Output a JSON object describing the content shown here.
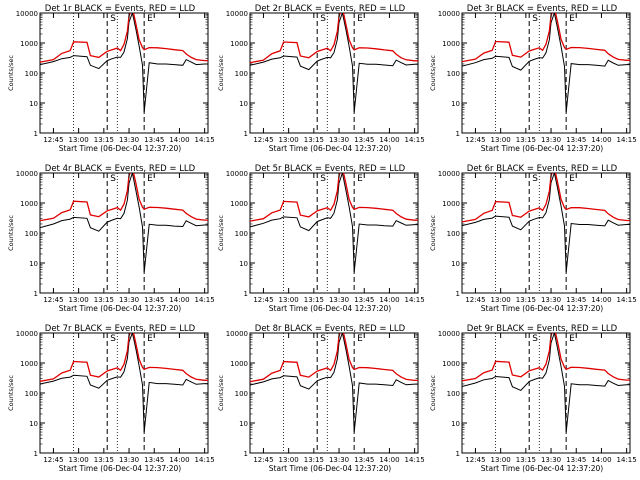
{
  "colors": {
    "events": "#000000",
    "lld": "#e00000",
    "axis": "#000000",
    "background": "#ffffff"
  },
  "common": {
    "xlabel": "Start Time (06-Dec-04 12:37:20)",
    "ylabel": "Counts/sec",
    "x_tick_labels": [
      "12:45",
      "13:00",
      "13:15",
      "13:30",
      "13:45",
      "14:00",
      "14:15"
    ],
    "y_tick_labels": [
      "1",
      "10",
      "100",
      "1000",
      "10000"
    ],
    "markers": [
      "S",
      "E"
    ]
  },
  "chart_data": [
    {
      "type": "line",
      "title": "Det 1r BLACK = Events, RED = LLD",
      "yscale": "log",
      "ylim": [
        1,
        10000
      ],
      "xlim": [
        "12:37",
        "14:17"
      ],
      "x": [
        "12:37",
        "12:45",
        "12:50",
        "12:55",
        "12:57",
        "13:05",
        "13:07",
        "13:12",
        "13:17",
        "13:20",
        "13:23",
        "13:25",
        "13:27",
        "13:29",
        "13:30",
        "13:32",
        "13:34",
        "13:36",
        "13:38",
        "13:39",
        "13:42",
        "13:47",
        "13:52",
        "13:57",
        "14:02",
        "14:04",
        "14:07",
        "14:10",
        "14:15",
        "14:17"
      ],
      "series": [
        {
          "name": "Events",
          "values": [
            190,
            240,
            300,
            330,
            380,
            350,
            180,
            140,
            260,
            300,
            340,
            330,
            500,
            1400,
            5000,
            10000,
            3000,
            800,
            180,
            5,
            220,
            200,
            200,
            190,
            180,
            280,
            230,
            190,
            200,
            200
          ]
        },
        {
          "name": "LLD",
          "values": [
            230,
            280,
            450,
            560,
            1100,
            1050,
            380,
            330,
            530,
            600,
            680,
            560,
            900,
            2500,
            8000,
            15000,
            4500,
            1300,
            700,
            600,
            700,
            690,
            650,
            600,
            560,
            430,
            330,
            280,
            260,
            260
          ]
        }
      ],
      "vlines_dotted": [
        "12:57",
        "13:23"
      ],
      "vlines_dashed": [
        "13:17",
        "13:39"
      ]
    },
    {
      "type": "line",
      "title": "Det 2r BLACK = Events, RED = LLD",
      "yscale": "log",
      "ylim": [
        1,
        10000
      ],
      "xlim": [
        "12:37",
        "14:17"
      ],
      "x": [
        "12:37",
        "12:45",
        "12:50",
        "12:55",
        "12:57",
        "13:05",
        "13:07",
        "13:12",
        "13:17",
        "13:20",
        "13:23",
        "13:25",
        "13:27",
        "13:29",
        "13:30",
        "13:32",
        "13:34",
        "13:36",
        "13:38",
        "13:39",
        "13:42",
        "13:47",
        "13:52",
        "13:57",
        "14:02",
        "14:04",
        "14:07",
        "14:10",
        "14:15",
        "14:17"
      ],
      "series": [
        {
          "name": "Events",
          "values": [
            180,
            230,
            290,
            320,
            370,
            340,
            170,
            130,
            250,
            290,
            330,
            320,
            480,
            1350,
            4800,
            10000,
            2900,
            780,
            170,
            5,
            210,
            195,
            195,
            185,
            175,
            270,
            220,
            185,
            195,
            195
          ]
        },
        {
          "name": "LLD",
          "values": [
            220,
            270,
            440,
            550,
            1080,
            1030,
            370,
            320,
            520,
            590,
            670,
            550,
            880,
            2450,
            7800,
            15000,
            4400,
            1280,
            690,
            590,
            690,
            680,
            640,
            590,
            550,
            420,
            320,
            275,
            255,
            255
          ]
        }
      ],
      "vlines_dotted": [
        "12:57",
        "13:23"
      ],
      "vlines_dashed": [
        "13:17",
        "13:39"
      ]
    },
    {
      "type": "line",
      "title": "Det 3r BLACK = Events, RED = LLD",
      "yscale": "log",
      "ylim": [
        1,
        10000
      ],
      "xlim": [
        "12:37",
        "14:17"
      ],
      "x": [
        "12:37",
        "12:45",
        "12:50",
        "12:55",
        "12:57",
        "13:05",
        "13:07",
        "13:12",
        "13:17",
        "13:20",
        "13:23",
        "13:25",
        "13:27",
        "13:29",
        "13:30",
        "13:32",
        "13:34",
        "13:36",
        "13:38",
        "13:39",
        "13:42",
        "13:47",
        "13:52",
        "13:57",
        "14:02",
        "14:04",
        "14:07",
        "14:10",
        "14:15",
        "14:17"
      ],
      "series": [
        {
          "name": "Events",
          "values": [
            170,
            220,
            280,
            310,
            360,
            330,
            165,
            125,
            245,
            285,
            325,
            315,
            470,
            1300,
            4700,
            10000,
            2800,
            760,
            165,
            5,
            205,
            190,
            190,
            180,
            170,
            265,
            215,
            180,
            190,
            190
          ]
        },
        {
          "name": "LLD",
          "values": [
            240,
            290,
            460,
            570,
            1120,
            1060,
            390,
            340,
            540,
            610,
            690,
            570,
            910,
            2550,
            8100,
            15000,
            4600,
            1320,
            710,
            610,
            710,
            700,
            660,
            610,
            570,
            440,
            340,
            285,
            265,
            265
          ]
        }
      ],
      "vlines_dotted": [
        "12:57",
        "13:23"
      ],
      "vlines_dashed": [
        "13:17",
        "13:39"
      ]
    },
    {
      "type": "line",
      "title": "Det 4r BLACK = Events, RED = LLD",
      "yscale": "log",
      "ylim": [
        1,
        10000
      ],
      "xlim": [
        "12:37",
        "14:17"
      ],
      "x": [
        "12:37",
        "12:45",
        "12:50",
        "12:55",
        "12:57",
        "13:05",
        "13:07",
        "13:12",
        "13:17",
        "13:20",
        "13:23",
        "13:25",
        "13:27",
        "13:29",
        "13:30",
        "13:32",
        "13:34",
        "13:36",
        "13:38",
        "13:39",
        "13:42",
        "13:47",
        "13:52",
        "13:57",
        "14:02",
        "14:04",
        "14:07",
        "14:10",
        "14:15",
        "14:17"
      ],
      "series": [
        {
          "name": "Events",
          "values": [
            150,
            200,
            260,
            290,
            330,
            310,
            150,
            115,
            230,
            270,
            310,
            300,
            450,
            1250,
            4500,
            10000,
            2700,
            740,
            160,
            5,
            195,
            180,
            180,
            170,
            165,
            255,
            210,
            175,
            185,
            185
          ]
        },
        {
          "name": "LLD",
          "values": [
            260,
            310,
            480,
            590,
            1150,
            1080,
            400,
            350,
            550,
            620,
            700,
            580,
            920,
            2600,
            8200,
            15000,
            4700,
            1350,
            720,
            620,
            720,
            710,
            670,
            620,
            580,
            450,
            350,
            290,
            270,
            270
          ]
        }
      ],
      "vlines_dotted": [
        "12:57",
        "13:23"
      ],
      "vlines_dashed": [
        "13:17",
        "13:39"
      ]
    },
    {
      "type": "line",
      "title": "Det 5r BLACK = Events, RED = LLD",
      "yscale": "log",
      "ylim": [
        1,
        10000
      ],
      "xlim": [
        "12:37",
        "14:17"
      ],
      "x": [
        "12:37",
        "12:45",
        "12:50",
        "12:55",
        "12:57",
        "13:05",
        "13:07",
        "13:12",
        "13:17",
        "13:20",
        "13:23",
        "13:25",
        "13:27",
        "13:29",
        "13:30",
        "13:32",
        "13:34",
        "13:36",
        "13:38",
        "13:39",
        "13:42",
        "13:47",
        "13:52",
        "13:57",
        "14:02",
        "14:04",
        "14:07",
        "14:10",
        "14:15",
        "14:17"
      ],
      "series": [
        {
          "name": "Events",
          "values": [
            160,
            210,
            270,
            300,
            345,
            320,
            160,
            120,
            240,
            280,
            320,
            310,
            460,
            1280,
            4600,
            10000,
            2750,
            750,
            165,
            5,
            200,
            185,
            185,
            175,
            170,
            260,
            215,
            180,
            190,
            190
          ]
        },
        {
          "name": "LLD",
          "values": [
            250,
            300,
            470,
            580,
            1130,
            1070,
            395,
            345,
            545,
            615,
            695,
            575,
            915,
            2580,
            8150,
            15000,
            4650,
            1330,
            715,
            615,
            715,
            705,
            665,
            615,
            575,
            445,
            345,
            288,
            268,
            268
          ]
        }
      ],
      "vlines_dotted": [
        "12:57",
        "13:23"
      ],
      "vlines_dashed": [
        "13:17",
        "13:39"
      ]
    },
    {
      "type": "line",
      "title": "Det 6r BLACK = Events, RED = LLD",
      "yscale": "log",
      "ylim": [
        1,
        10000
      ],
      "xlim": [
        "12:37",
        "14:17"
      ],
      "x": [
        "12:37",
        "12:45",
        "12:50",
        "12:55",
        "12:57",
        "13:05",
        "13:07",
        "13:12",
        "13:17",
        "13:20",
        "13:23",
        "13:25",
        "13:27",
        "13:29",
        "13:30",
        "13:32",
        "13:34",
        "13:36",
        "13:38",
        "13:39",
        "13:42",
        "13:47",
        "13:52",
        "13:57",
        "14:02",
        "14:04",
        "14:07",
        "14:10",
        "14:15",
        "14:17"
      ],
      "series": [
        {
          "name": "Events",
          "values": [
            175,
            225,
            285,
            315,
            365,
            335,
            170,
            128,
            248,
            288,
            328,
            318,
            475,
            1320,
            4750,
            10000,
            2850,
            770,
            168,
            5,
            208,
            192,
            192,
            182,
            172,
            268,
            218,
            182,
            192,
            192
          ]
        },
        {
          "name": "LLD",
          "values": [
            235,
            285,
            455,
            565,
            1110,
            1050,
            385,
            335,
            535,
            605,
            685,
            565,
            905,
            2520,
            8050,
            15000,
            4550,
            1310,
            705,
            605,
            705,
            695,
            655,
            605,
            565,
            435,
            335,
            282,
            262,
            262
          ]
        }
      ],
      "vlines_dotted": [
        "12:57",
        "13:23"
      ],
      "vlines_dashed": [
        "13:17",
        "13:39"
      ]
    },
    {
      "type": "line",
      "title": "Det 7r BLACK = Events, RED = LLD",
      "yscale": "log",
      "ylim": [
        1,
        10000
      ],
      "xlim": [
        "12:37",
        "14:17"
      ],
      "x": [
        "12:37",
        "12:45",
        "12:50",
        "12:55",
        "12:57",
        "13:05",
        "13:07",
        "13:12",
        "13:17",
        "13:20",
        "13:23",
        "13:25",
        "13:27",
        "13:29",
        "13:30",
        "13:32",
        "13:34",
        "13:36",
        "13:38",
        "13:39",
        "13:42",
        "13:47",
        "13:52",
        "13:57",
        "14:02",
        "14:04",
        "14:07",
        "14:10",
        "14:15",
        "14:17"
      ],
      "series": [
        {
          "name": "Events",
          "values": [
            200,
            250,
            310,
            340,
            390,
            360,
            185,
            145,
            265,
            305,
            345,
            335,
            510,
            1420,
            5100,
            10000,
            3050,
            810,
            185,
            5,
            225,
            205,
            205,
            195,
            185,
            285,
            235,
            195,
            205,
            205
          ]
        },
        {
          "name": "LLD",
          "values": [
            245,
            295,
            465,
            575,
            1125,
            1065,
            392,
            342,
            542,
            612,
            692,
            572,
            912,
            2560,
            8120,
            15000,
            4620,
            1325,
            712,
            612,
            712,
            702,
            662,
            612,
            572,
            442,
            342,
            286,
            266,
            266
          ]
        }
      ],
      "vlines_dotted": [
        "12:57",
        "13:23"
      ],
      "vlines_dashed": [
        "13:17",
        "13:39"
      ]
    },
    {
      "type": "line",
      "title": "Det 8r BLACK = Events, RED = LLD",
      "yscale": "log",
      "ylim": [
        1,
        10000
      ],
      "xlim": [
        "12:37",
        "14:17"
      ],
      "x": [
        "12:37",
        "12:45",
        "12:50",
        "12:55",
        "12:57",
        "13:05",
        "13:07",
        "13:12",
        "13:17",
        "13:20",
        "13:23",
        "13:25",
        "13:27",
        "13:29",
        "13:30",
        "13:32",
        "13:34",
        "13:36",
        "13:38",
        "13:39",
        "13:42",
        "13:47",
        "13:52",
        "13:57",
        "14:02",
        "14:04",
        "14:07",
        "14:10",
        "14:15",
        "14:17"
      ],
      "series": [
        {
          "name": "Events",
          "values": [
            185,
            235,
            295,
            325,
            375,
            345,
            175,
            135,
            255,
            295,
            335,
            325,
            490,
            1380,
            4900,
            10000,
            2950,
            790,
            175,
            5,
            215,
            198,
            198,
            188,
            178,
            275,
            225,
            188,
            198,
            198
          ]
        },
        {
          "name": "LLD",
          "values": [
            238,
            288,
            458,
            568,
            1115,
            1055,
            388,
            338,
            538,
            608,
            688,
            568,
            908,
            2540,
            8080,
            15000,
            4580,
            1315,
            708,
            608,
            708,
            698,
            658,
            608,
            568,
            438,
            338,
            284,
            264,
            264
          ]
        }
      ],
      "vlines_dotted": [
        "12:57",
        "13:23"
      ],
      "vlines_dashed": [
        "13:17",
        "13:39"
      ]
    },
    {
      "type": "line",
      "title": "Det 9r BLACK = Events, RED = LLD",
      "yscale": "log",
      "ylim": [
        1,
        10000
      ],
      "xlim": [
        "12:37",
        "14:17"
      ],
      "x": [
        "12:37",
        "12:45",
        "12:50",
        "12:55",
        "12:57",
        "13:05",
        "13:07",
        "13:12",
        "13:17",
        "13:20",
        "13:23",
        "13:25",
        "13:27",
        "13:29",
        "13:30",
        "13:32",
        "13:34",
        "13:36",
        "13:38",
        "13:39",
        "13:42",
        "13:47",
        "13:52",
        "13:57",
        "14:02",
        "14:04",
        "14:07",
        "14:10",
        "14:15",
        "14:17"
      ],
      "series": [
        {
          "name": "Events",
          "values": [
            165,
            215,
            275,
            305,
            355,
            325,
            162,
            122,
            242,
            282,
            322,
            312,
            465,
            1290,
            4650,
            10000,
            2780,
            755,
            166,
            5,
            202,
            188,
            188,
            178,
            170,
            262,
            212,
            178,
            188,
            188
          ]
        },
        {
          "name": "LLD",
          "values": [
            255,
            305,
            475,
            585,
            1140,
            1075,
            398,
            348,
            548,
            618,
            698,
            578,
            918,
            2590,
            8180,
            15000,
            4680,
            1340,
            718,
            618,
            718,
            708,
            668,
            618,
            578,
            448,
            348,
            290,
            270,
            270
          ]
        }
      ],
      "vlines_dotted": [
        "12:57",
        "13:23"
      ],
      "vlines_dashed": [
        "13:17",
        "13:39"
      ]
    }
  ]
}
